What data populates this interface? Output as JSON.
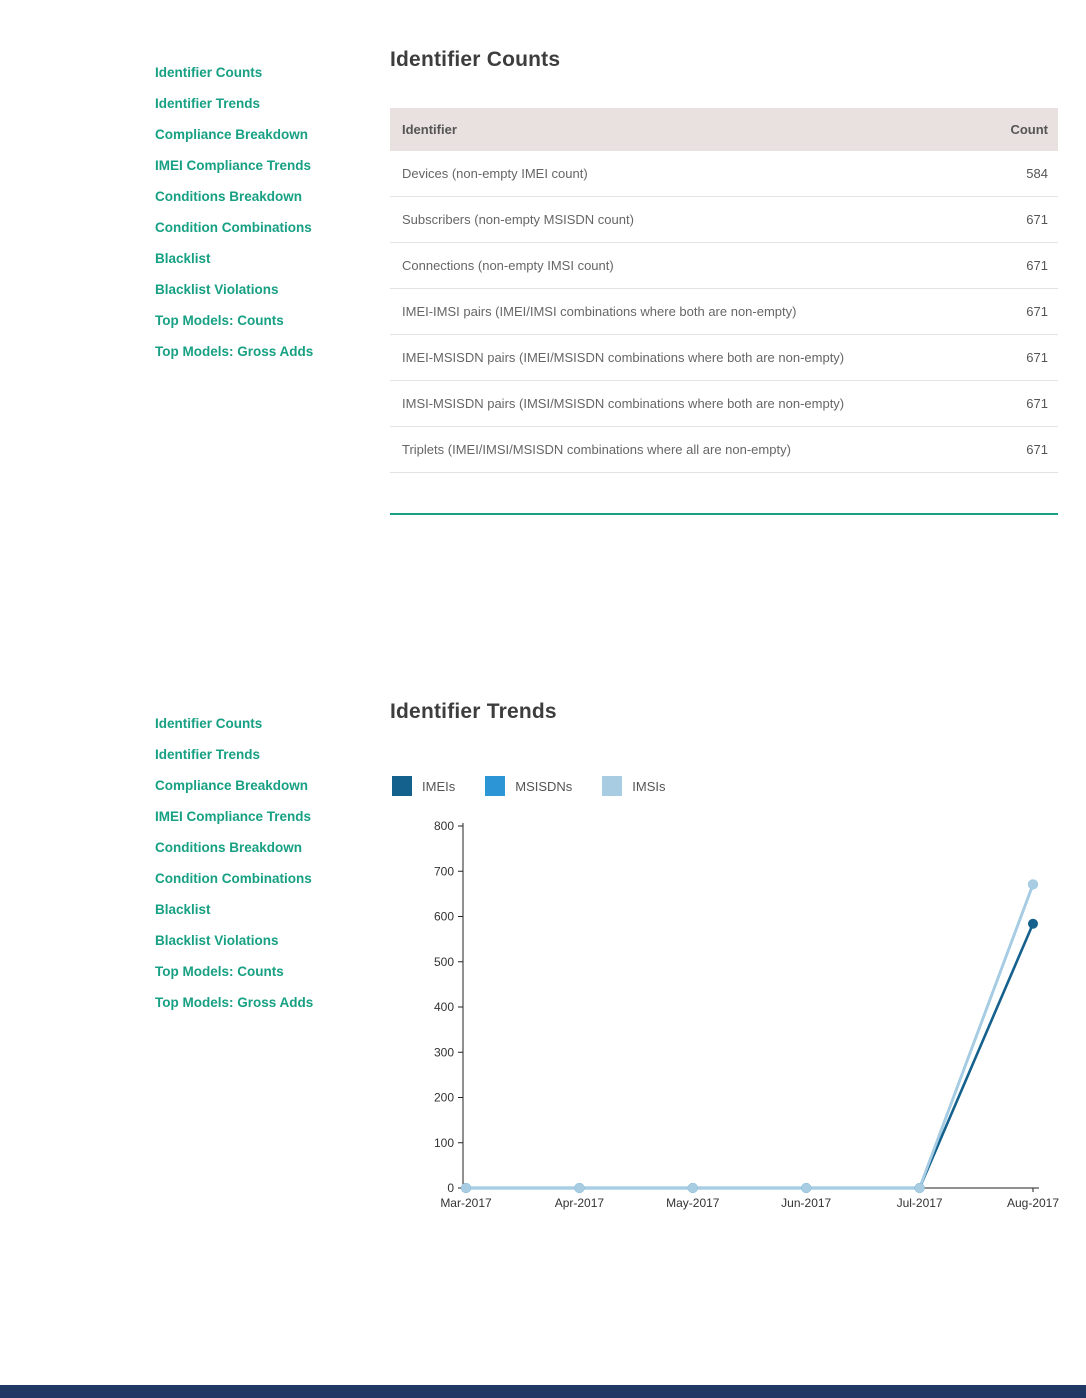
{
  "colors": {
    "sidebar_link": "#17a083",
    "section_divider": "#17a083",
    "footer_bar": "#203864",
    "table_header_bg": "#e9e0e0"
  },
  "sidebar": {
    "items": [
      {
        "label": "Identifier Counts"
      },
      {
        "label": "Identifier Trends"
      },
      {
        "label": "Compliance Breakdown"
      },
      {
        "label": "IMEI Compliance Trends"
      },
      {
        "label": "Conditions Breakdown"
      },
      {
        "label": "Condition Combinations"
      },
      {
        "label": "Blacklist"
      },
      {
        "label": "Blacklist Violations"
      },
      {
        "label": "Top Models: Counts"
      },
      {
        "label": "Top Models: Gross Adds"
      }
    ]
  },
  "sections": {
    "counts": {
      "title": "Identifier Counts",
      "table": {
        "headers": [
          "Identifier",
          "Count"
        ],
        "rows": [
          {
            "identifier": "Devices (non-empty IMEI count)",
            "count": "584"
          },
          {
            "identifier": "Subscribers (non-empty MSISDN count)",
            "count": "671"
          },
          {
            "identifier": "Connections (non-empty IMSI count)",
            "count": "671"
          },
          {
            "identifier": "IMEI-IMSI pairs (IMEI/IMSI combinations where both are non-empty)",
            "count": "671"
          },
          {
            "identifier": "IMEI-MSISDN pairs (IMEI/MSISDN combinations where both are non-empty)",
            "count": "671"
          },
          {
            "identifier": "IMSI-MSISDN pairs (IMSI/MSISDN combinations where both are non-empty)",
            "count": "671"
          },
          {
            "identifier": "Triplets (IMEI/IMSI/MSISDN combinations where all are non-empty)",
            "count": "671"
          }
        ]
      }
    },
    "trends": {
      "title": "Identifier Trends"
    }
  },
  "chart_data": {
    "type": "line",
    "title": "Identifier Trends",
    "x": [
      "Mar-2017",
      "Apr-2017",
      "May-2017",
      "Jun-2017",
      "Jul-2017",
      "Aug-2017"
    ],
    "series": [
      {
        "name": "IMEIs",
        "color": "#15618d",
        "values": [
          0,
          0,
          0,
          0,
          0,
          584
        ]
      },
      {
        "name": "MSISDNs",
        "color": "#2b95d6",
        "values": [
          0,
          0,
          0,
          0,
          0,
          671
        ]
      },
      {
        "name": "IMSIs",
        "color": "#a8cde3",
        "values": [
          0,
          0,
          0,
          0,
          0,
          671
        ]
      }
    ],
    "xlabel": "",
    "ylabel": "",
    "ylim": [
      0,
      800
    ],
    "yticks": [
      0,
      100,
      200,
      300,
      400,
      500,
      600,
      700,
      800
    ],
    "grid": false,
    "legend_position": "top-left"
  }
}
